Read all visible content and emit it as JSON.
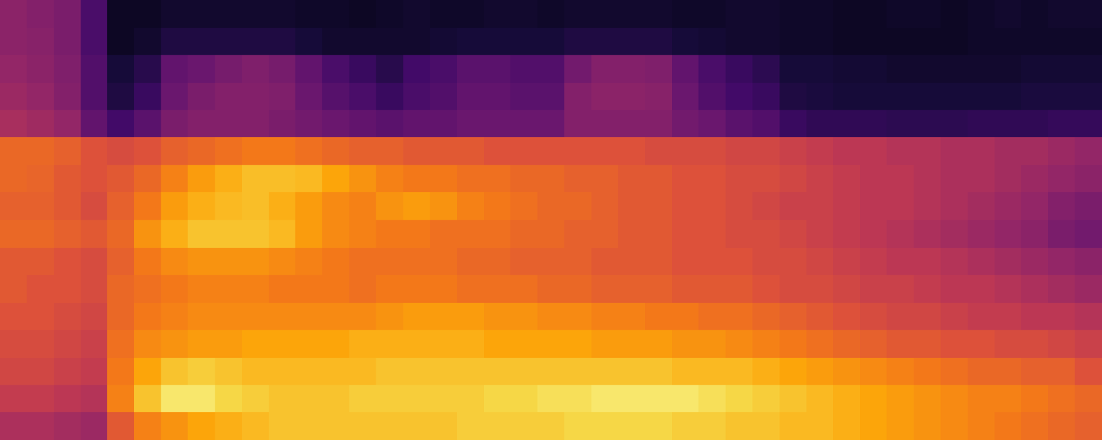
{
  "chart_data": {
    "type": "heatmap",
    "color": "inferno",
    "tick_labels": false,
    "zlim": [
      0,
      100
    ],
    "cells": [
      [
        38,
        36,
        34,
        22,
        6,
        6,
        8,
        8,
        8,
        8,
        8,
        7,
        7,
        6,
        7,
        8,
        7,
        7,
        8,
        8,
        7,
        8,
        8,
        8,
        8,
        7,
        7,
        8,
        8,
        7,
        7,
        6,
        6,
        7,
        7,
        6,
        7,
        8,
        7,
        8,
        8
      ],
      [
        38,
        37,
        34,
        22,
        6,
        8,
        12,
        12,
        12,
        12,
        12,
        10,
        8,
        8,
        8,
        8,
        9,
        10,
        10,
        10,
        10,
        12,
        12,
        12,
        12,
        10,
        9,
        8,
        8,
        7,
        7,
        6,
        6,
        6,
        6,
        6,
        7,
        7,
        7,
        7,
        7
      ],
      [
        40,
        38,
        35,
        24,
        10,
        14,
        28,
        30,
        33,
        35,
        33,
        28,
        22,
        18,
        14,
        20,
        22,
        26,
        26,
        24,
        24,
        32,
        36,
        36,
        35,
        28,
        22,
        18,
        15,
        10,
        10,
        9,
        9,
        8,
        8,
        8,
        8,
        8,
        9,
        9,
        9
      ],
      [
        42,
        40,
        36,
        24,
        12,
        18,
        30,
        34,
        36,
        36,
        35,
        30,
        25,
        22,
        18,
        22,
        24,
        28,
        28,
        26,
        26,
        36,
        38,
        38,
        37,
        30,
        24,
        20,
        18,
        12,
        11,
        10,
        10,
        10,
        10,
        10,
        10,
        10,
        11,
        11,
        11
      ],
      [
        45,
        43,
        40,
        28,
        20,
        26,
        34,
        36,
        36,
        36,
        34,
        32,
        30,
        28,
        26,
        28,
        28,
        30,
        30,
        30,
        30,
        36,
        36,
        36,
        36,
        32,
        30,
        26,
        24,
        18,
        16,
        16,
        16,
        15,
        15,
        15,
        16,
        16,
        16,
        17,
        17
      ],
      [
        66,
        66,
        64,
        60,
        58,
        60,
        64,
        66,
        68,
        70,
        70,
        68,
        66,
        64,
        64,
        62,
        62,
        62,
        60,
        60,
        60,
        60,
        60,
        60,
        58,
        58,
        58,
        56,
        56,
        54,
        52,
        50,
        50,
        48,
        48,
        46,
        46,
        44,
        44,
        42,
        40
      ],
      [
        66,
        65,
        62,
        60,
        62,
        66,
        72,
        78,
        82,
        85,
        85,
        84,
        80,
        76,
        72,
        70,
        70,
        68,
        68,
        66,
        66,
        64,
        64,
        62,
        62,
        60,
        60,
        58,
        58,
        56,
        54,
        52,
        50,
        50,
        48,
        46,
        46,
        44,
        42,
        40,
        38
      ],
      [
        64,
        64,
        62,
        58,
        64,
        70,
        78,
        82,
        84,
        85,
        82,
        78,
        74,
        72,
        76,
        78,
        76,
        72,
        70,
        68,
        66,
        66,
        64,
        62,
        62,
        60,
        60,
        58,
        56,
        54,
        54,
        52,
        50,
        50,
        48,
        46,
        44,
        42,
        40,
        36,
        34
      ],
      [
        66,
        66,
        64,
        62,
        66,
        76,
        82,
        86,
        86,
        86,
        84,
        78,
        74,
        72,
        70,
        70,
        68,
        68,
        68,
        66,
        66,
        64,
        64,
        62,
        62,
        60,
        60,
        58,
        58,
        56,
        54,
        52,
        50,
        48,
        46,
        44,
        42,
        40,
        38,
        34,
        32
      ],
      [
        62,
        62,
        60,
        58,
        64,
        70,
        74,
        76,
        76,
        76,
        74,
        72,
        70,
        68,
        68,
        68,
        68,
        66,
        66,
        64,
        64,
        64,
        62,
        62,
        62,
        60,
        60,
        60,
        58,
        58,
        56,
        54,
        52,
        50,
        50,
        48,
        46,
        44,
        42,
        40,
        38
      ],
      [
        62,
        60,
        60,
        58,
        66,
        68,
        70,
        72,
        72,
        72,
        70,
        70,
        70,
        68,
        70,
        70,
        70,
        68,
        68,
        68,
        66,
        66,
        64,
        64,
        64,
        62,
        62,
        62,
        60,
        58,
        58,
        56,
        54,
        54,
        52,
        50,
        50,
        48,
        46,
        44,
        42
      ],
      [
        60,
        60,
        58,
        56,
        66,
        70,
        72,
        74,
        74,
        74,
        74,
        74,
        74,
        74,
        76,
        78,
        78,
        78,
        76,
        76,
        74,
        74,
        72,
        72,
        70,
        70,
        68,
        68,
        66,
        64,
        62,
        60,
        58,
        56,
        56,
        54,
        52,
        52,
        50,
        50,
        48
      ],
      [
        58,
        58,
        56,
        54,
        68,
        74,
        76,
        78,
        78,
        80,
        80,
        80,
        80,
        82,
        82,
        82,
        82,
        82,
        80,
        80,
        80,
        80,
        78,
        78,
        78,
        76,
        76,
        74,
        72,
        70,
        68,
        66,
        64,
        62,
        62,
        60,
        60,
        58,
        58,
        56,
        54
      ],
      [
        56,
        56,
        54,
        52,
        70,
        80,
        86,
        88,
        86,
        84,
        84,
        84,
        84,
        84,
        86,
        86,
        86,
        86,
        86,
        86,
        86,
        86,
        86,
        86,
        86,
        84,
        84,
        84,
        82,
        80,
        78,
        76,
        74,
        72,
        70,
        68,
        66,
        66,
        64,
        64,
        60
      ],
      [
        52,
        52,
        50,
        48,
        72,
        86,
        94,
        94,
        90,
        88,
        86,
        86,
        86,
        88,
        88,
        88,
        88,
        88,
        90,
        90,
        92,
        92,
        94,
        94,
        94,
        94,
        92,
        90,
        88,
        86,
        84,
        82,
        80,
        78,
        76,
        74,
        72,
        72,
        70,
        68,
        66
      ],
      [
        46,
        46,
        44,
        42,
        62,
        72,
        76,
        80,
        82,
        84,
        86,
        86,
        86,
        86,
        86,
        86,
        86,
        88,
        88,
        88,
        88,
        90,
        90,
        90,
        90,
        88,
        88,
        86,
        86,
        84,
        84,
        82,
        80,
        78,
        76,
        74,
        72,
        70,
        68,
        66,
        64
      ]
    ]
  }
}
